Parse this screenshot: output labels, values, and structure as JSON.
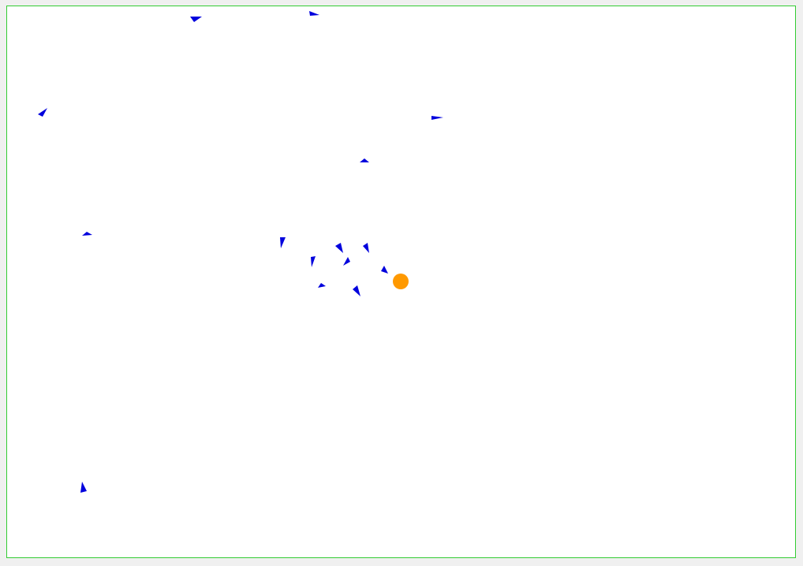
{
  "scene": {
    "type": "boids-flocking-simulation",
    "colors": {
      "background": "#ffffff",
      "page_background": "#f0f0f0",
      "border": "#33cc33",
      "agent": "#0000dd",
      "target": "#ff9900"
    },
    "agent_shape": "triangle",
    "agent_count": 17,
    "target_shape": "circle",
    "target_count": 1
  }
}
